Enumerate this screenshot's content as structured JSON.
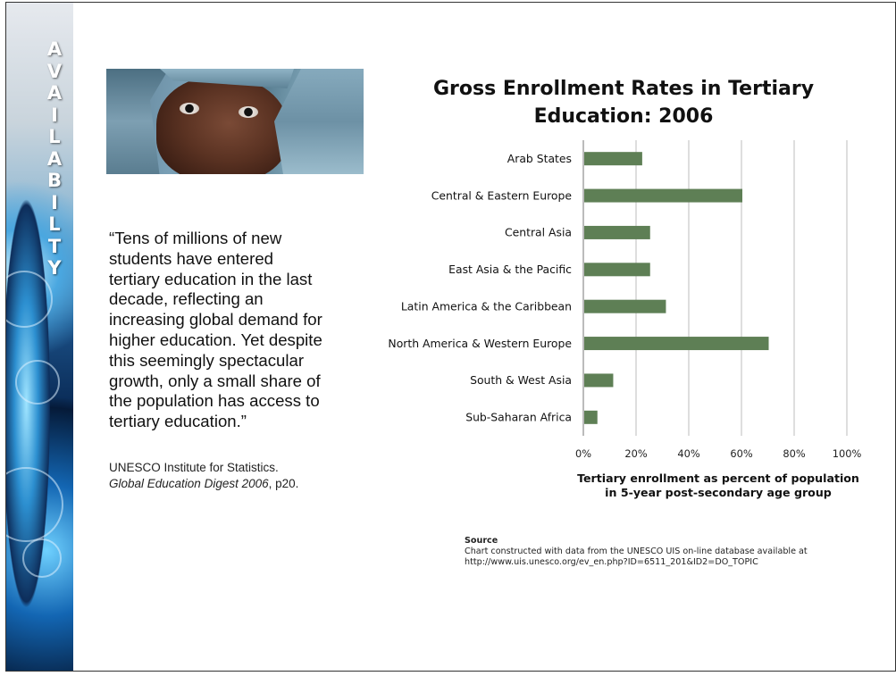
{
  "sidebar": {
    "letters": [
      "A",
      "V",
      "A",
      "I",
      "L",
      "A",
      "B",
      "I",
      "L",
      "T",
      "Y"
    ]
  },
  "quote": {
    "lines": [
      "“Tens of millions of new",
      "students have entered",
      "tertiary education in the last",
      "decade, reflecting an",
      "increasing global demand for",
      "higher education. Yet despite",
      "this seemingly spectacular",
      "growth, only a small share of",
      "the population has access to",
      "tertiary education.”"
    ]
  },
  "citation": {
    "line1": "UNESCO Institute for Statistics.",
    "line2_italic": "Global Education Digest 2006",
    "line2_rest": ", p20."
  },
  "chart_data": {
    "type": "bar",
    "orientation": "horizontal",
    "title_lines": [
      "Gross Enrollment Rates in Tertiary",
      "Education: 2006"
    ],
    "categories": [
      "Arab States",
      "Central & Eastern Europe",
      "Central Asia",
      "East Asia & the Pacific",
      "Latin America & the Caribbean",
      "North America & Western Europe",
      "South & West Asia",
      "Sub-Saharan Africa"
    ],
    "values": [
      22,
      60,
      25,
      25,
      31,
      70,
      11,
      5
    ],
    "xlim": [
      0,
      100
    ],
    "x_ticks": [
      "0%",
      "20%",
      "40%",
      "60%",
      "80%",
      "100%"
    ],
    "x_tick_values": [
      0,
      20,
      40,
      60,
      80,
      100
    ],
    "xlabel_lines": [
      "Tertiary enrollment as percent of population",
      "in 5-year post-secondary age group"
    ],
    "grid": "vertical",
    "bar_color": "#5e7f55"
  },
  "source": {
    "heading": "Source",
    "line1": "Chart constructed with data from the UNESCO UIS on-line database available at",
    "line2": "http://www.uis.unesco.org/ev_en.php?ID=6511_201&ID2=DO_TOPIC"
  }
}
